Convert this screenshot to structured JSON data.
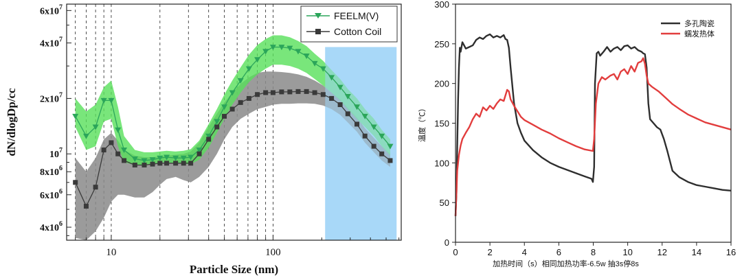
{
  "chart_data": [
    {
      "type": "line",
      "xlabel": "Particle Size (nm)",
      "ylabel": "dN/dlogDp/cc",
      "xscale": "log",
      "yscale": "log",
      "xlim": [
        5.3,
        620
      ],
      "ylim": [
        3400000,
        65000000
      ],
      "x_tick_labels": [
        {
          "v": 10,
          "t": "10"
        },
        {
          "v": 100,
          "t": "100"
        }
      ],
      "y_tick_labels": [
        {
          "v": 4000000,
          "m": "4x10",
          "e": "6"
        },
        {
          "v": 6000000,
          "m": "6x10",
          "e": "6"
        },
        {
          "v": 8000000,
          "m": "8x10",
          "e": "6"
        },
        {
          "v": 10000000,
          "m": "10",
          "e": "7"
        },
        {
          "v": 20000000,
          "m": "2x10",
          "e": "7"
        },
        {
          "v": 40000000,
          "m": "4x10",
          "e": "7"
        },
        {
          "v": 60000000,
          "m": "6x10",
          "e": "7"
        }
      ],
      "legend_position": "top-right",
      "highlight_x_range": [
        210,
        580
      ],
      "grid_x": [
        6,
        7,
        8,
        9,
        10,
        20,
        30,
        40,
        50,
        60,
        70,
        80,
        90,
        100
      ],
      "x": [
        6,
        7,
        8,
        9,
        10,
        11,
        12,
        14,
        16,
        18,
        20,
        22,
        25,
        28,
        31,
        35,
        40,
        45,
        50,
        56,
        63,
        71,
        80,
        90,
        100,
        113,
        127,
        143,
        161,
        181,
        204,
        230,
        260,
        290,
        330,
        370,
        420,
        470,
        530
      ],
      "series": [
        {
          "name": "FEELM(V)",
          "color": "#2ba55a",
          "band_color": "#58e05a",
          "marker": "triangle-down",
          "values": [
            16000000,
            12500000,
            14000000,
            19500000,
            19500000,
            13500000,
            10500000,
            9400000,
            9200000,
            9300000,
            9500000,
            9600000,
            9500000,
            9500000,
            9600000,
            10500000,
            12500000,
            15000000,
            18000000,
            21500000,
            25000000,
            29000000,
            32500000,
            36000000,
            38000000,
            38000000,
            37500000,
            36000000,
            34000000,
            31000000,
            29000000,
            26000000,
            23000000,
            20500000,
            18000000,
            16000000,
            14000000,
            12500000,
            11000000
          ],
          "band_lower": [
            14000000,
            10500000,
            11000000,
            15000000,
            15500000,
            11000000,
            9000000,
            8700000,
            8600000,
            8800000,
            9000000,
            9000000,
            8900000,
            8800000,
            8800000,
            9300000,
            10800000,
            13000000,
            15500000,
            18500000,
            21500000,
            24500000,
            27000000,
            29000000,
            30500000,
            30500000,
            30000000,
            29000000,
            27500000,
            25500000,
            23500000,
            21500000,
            19500000,
            17500000,
            15500000,
            14000000,
            12500000,
            11000000,
            9800000
          ],
          "band_upper": [
            20000000,
            17000000,
            18500000,
            23000000,
            25000000,
            18000000,
            12500000,
            10500000,
            10200000,
            10200000,
            10300000,
            10400000,
            10300000,
            10400000,
            10600000,
            11800000,
            14500000,
            17500000,
            21000000,
            25000000,
            29500000,
            34500000,
            39000000,
            42000000,
            44000000,
            44000000,
            43000000,
            41000000,
            38500000,
            35000000,
            32000000,
            28500000,
            25500000,
            22500000,
            20000000,
            17500000,
            15500000,
            13500000,
            12000000
          ]
        },
        {
          "name": "Cotton Coil",
          "color": "#3a3a3a",
          "band_color": "#8a8a8a",
          "marker": "square",
          "values": [
            7000000,
            5200000,
            6600000,
            10500000,
            11500000,
            10000000,
            9200000,
            8700000,
            8700000,
            8800000,
            8900000,
            8900000,
            8900000,
            8900000,
            8900000,
            10000000,
            12000000,
            14000000,
            16000000,
            17500000,
            19000000,
            20000000,
            21000000,
            21500000,
            21500000,
            21700000,
            21700000,
            21800000,
            21800000,
            21500000,
            21000000,
            20000000,
            18500000,
            16500000,
            14500000,
            12500000,
            11000000,
            10000000,
            9200000
          ],
          "band_lower": [
            3500000,
            3400000,
            3800000,
            4500000,
            5500000,
            6000000,
            6000000,
            5800000,
            5800000,
            6200000,
            6800000,
            7300000,
            7500000,
            7200000,
            7000000,
            7500000,
            8500000,
            10000000,
            12000000,
            14000000,
            15500000,
            16500000,
            17500000,
            18000000,
            18500000,
            18700000,
            18700000,
            18800000,
            18800000,
            18700000,
            18300000,
            17500000,
            16300000,
            14800000,
            13200000,
            11500000,
            10200000,
            9200000,
            8500000
          ],
          "band_upper": [
            9500000,
            8000000,
            9500000,
            12000000,
            13000000,
            11800000,
            10500000,
            9800000,
            9600000,
            9600000,
            9700000,
            9800000,
            9900000,
            10000000,
            10300000,
            11500000,
            14000000,
            16500000,
            19000000,
            21500000,
            24000000,
            26000000,
            27500000,
            28000000,
            28000000,
            27800000,
            27500000,
            27000000,
            26200000,
            25000000,
            23500000,
            21500000,
            19800000,
            17800000,
            15800000,
            13800000,
            12200000,
            11000000,
            10000000
          ]
        }
      ]
    },
    {
      "type": "line",
      "xlabel": "加热时间（s）相同加热功率-6.5w 抽3s停8s",
      "ylabel": "温度（℃）",
      "xlim": [
        0,
        16
      ],
      "ylim": [
        0,
        300
      ],
      "x_ticks": [
        0,
        2,
        4,
        6,
        8,
        10,
        12,
        14,
        16
      ],
      "y_ticks": [
        0,
        50,
        100,
        150,
        200,
        250,
        300
      ],
      "legend_position": "top-right",
      "series": [
        {
          "name": "多孔陶瓷",
          "color": "#2e2e2e",
          "x": [
            0,
            0.05,
            0.1,
            0.15,
            0.2,
            0.25,
            0.3,
            0.4,
            0.5,
            0.6,
            0.8,
            1.0,
            1.2,
            1.4,
            1.6,
            1.8,
            2.0,
            2.2,
            2.4,
            2.6,
            2.8,
            2.9,
            3.0,
            3.1,
            3.2,
            3.4,
            3.6,
            3.8,
            4.0,
            4.5,
            5.0,
            5.5,
            6.0,
            6.5,
            7.0,
            7.5,
            7.9,
            7.98,
            8.05,
            8.1,
            8.2,
            8.3,
            8.4,
            8.6,
            8.8,
            9.0,
            9.2,
            9.4,
            9.6,
            9.8,
            10.0,
            10.2,
            10.4,
            10.6,
            10.8,
            10.9,
            11.0,
            11.1,
            11.2,
            11.3,
            11.5,
            11.7,
            11.9,
            12.1,
            12.3,
            12.6,
            13.0,
            13.5,
            14.0,
            14.5,
            15.0,
            15.5,
            16.0
          ],
          "values": [
            33,
            60,
            120,
            180,
            220,
            245,
            240,
            252,
            248,
            244,
            246,
            248,
            255,
            258,
            256,
            260,
            262,
            258,
            260,
            258,
            261,
            256,
            255,
            245,
            220,
            175,
            150,
            138,
            128,
            116,
            107,
            100,
            95,
            91,
            87,
            83,
            80,
            76,
            95,
            200,
            238,
            240,
            235,
            240,
            246,
            240,
            244,
            246,
            242,
            247,
            248,
            244,
            246,
            242,
            240,
            238,
            237,
            220,
            175,
            155,
            150,
            145,
            142,
            130,
            115,
            90,
            82,
            76,
            72,
            70,
            68,
            66,
            65
          ]
        },
        {
          "name": "蠕发热体",
          "color": "#e23d3d",
          "x": [
            0,
            0.05,
            0.1,
            0.2,
            0.3,
            0.4,
            0.6,
            0.8,
            1.0,
            1.2,
            1.4,
            1.6,
            1.8,
            2.0,
            2.2,
            2.4,
            2.6,
            2.8,
            2.9,
            3.0,
            3.1,
            3.2,
            3.4,
            3.6,
            3.8,
            4.0,
            4.5,
            5.0,
            5.5,
            6.0,
            6.5,
            7.0,
            7.5,
            7.98,
            8.05,
            8.15,
            8.3,
            8.5,
            8.7,
            9.0,
            9.2,
            9.4,
            9.6,
            9.8,
            10.0,
            10.2,
            10.4,
            10.6,
            10.8,
            10.9,
            11.0,
            11.1,
            11.2,
            11.4,
            11.6,
            11.8,
            12.0,
            12.3,
            12.6,
            13.0,
            13.5,
            14.0,
            14.5,
            15.0,
            15.5,
            16.0
          ],
          "values": [
            33,
            60,
            90,
            110,
            122,
            130,
            138,
            145,
            155,
            162,
            158,
            170,
            166,
            172,
            168,
            175,
            180,
            178,
            185,
            192,
            190,
            180,
            172,
            165,
            158,
            154,
            148,
            142,
            137,
            131,
            126,
            121,
            117,
            115,
            130,
            175,
            200,
            208,
            205,
            210,
            212,
            205,
            215,
            218,
            212,
            222,
            215,
            226,
            228,
            232,
            225,
            210,
            200,
            196,
            193,
            190,
            186,
            180,
            174,
            168,
            161,
            156,
            151,
            148,
            145,
            142
          ]
        }
      ]
    }
  ]
}
